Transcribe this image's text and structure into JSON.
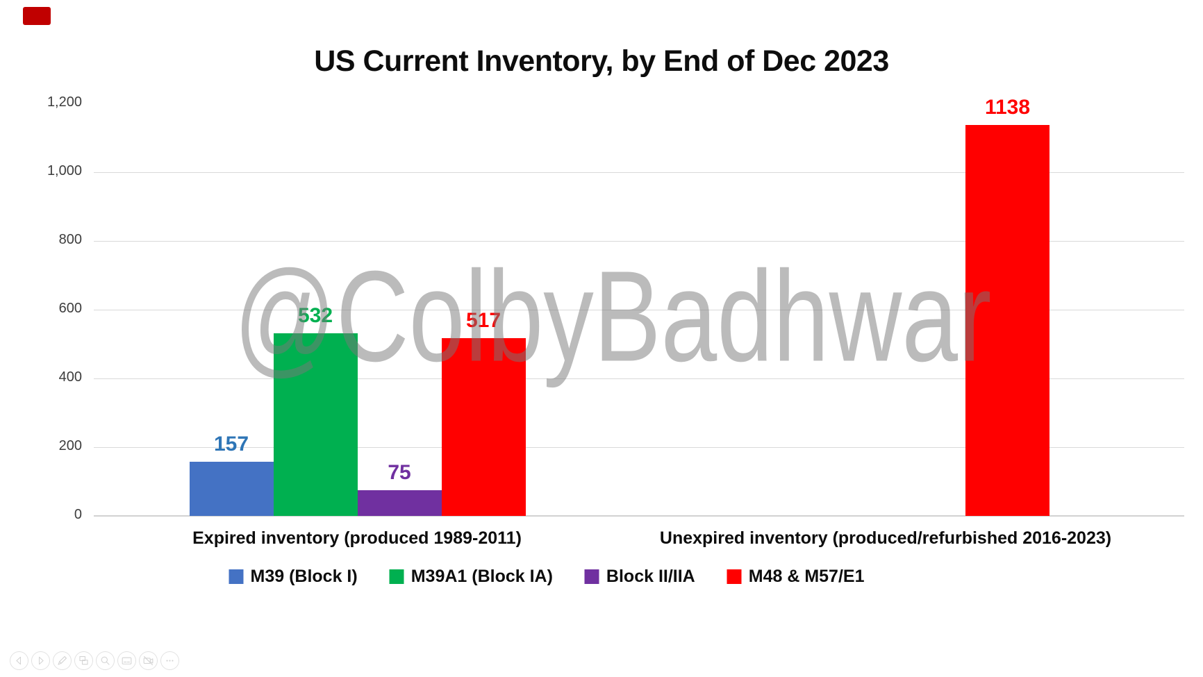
{
  "watermark": "@ColbyBadhwar",
  "chart_data": {
    "type": "bar",
    "title": "US Current Inventory, by End of Dec 2023",
    "categories": [
      "Expired inventory (produced 1989-2011)",
      "Unexpired inventory (produced/refurbished 2016-2023)"
    ],
    "series": [
      {
        "name": "M39 (Block I)",
        "color": "#4472C4",
        "label_color": "#2E75B6",
        "values": [
          157,
          null
        ]
      },
      {
        "name": "M39A1 (Block IA)",
        "color": "#00B050",
        "label_color": "#00B050",
        "values": [
          532,
          null
        ]
      },
      {
        "name": "Block II/IIA",
        "color": "#7030A0",
        "label_color": "#7030A0",
        "values": [
          75,
          null
        ]
      },
      {
        "name": "M48 & M57/E1",
        "color": "#FF0000",
        "label_color": "#FF0000",
        "values": [
          517,
          1138
        ]
      }
    ],
    "ylim": [
      0,
      1200
    ],
    "ytick_step": 200,
    "ytick_labels": [
      "0",
      "200",
      "400",
      "600",
      "800",
      "1,000",
      "1,200"
    ],
    "grid": true,
    "top_gridline_hidden": true,
    "legend_position": "bottom",
    "data_labels": true,
    "background": "#ffffff",
    "gridline_color": "#d9d9d9"
  },
  "toolbar": {
    "items": [
      {
        "icon": "previous-slide-icon"
      },
      {
        "icon": "next-slide-icon"
      },
      {
        "icon": "pen-icon"
      },
      {
        "icon": "all-slides-icon"
      },
      {
        "icon": "zoom-into-slide-icon"
      },
      {
        "icon": "captions-icon"
      },
      {
        "icon": "camera-off-icon"
      },
      {
        "icon": "more-options-icon"
      }
    ]
  }
}
